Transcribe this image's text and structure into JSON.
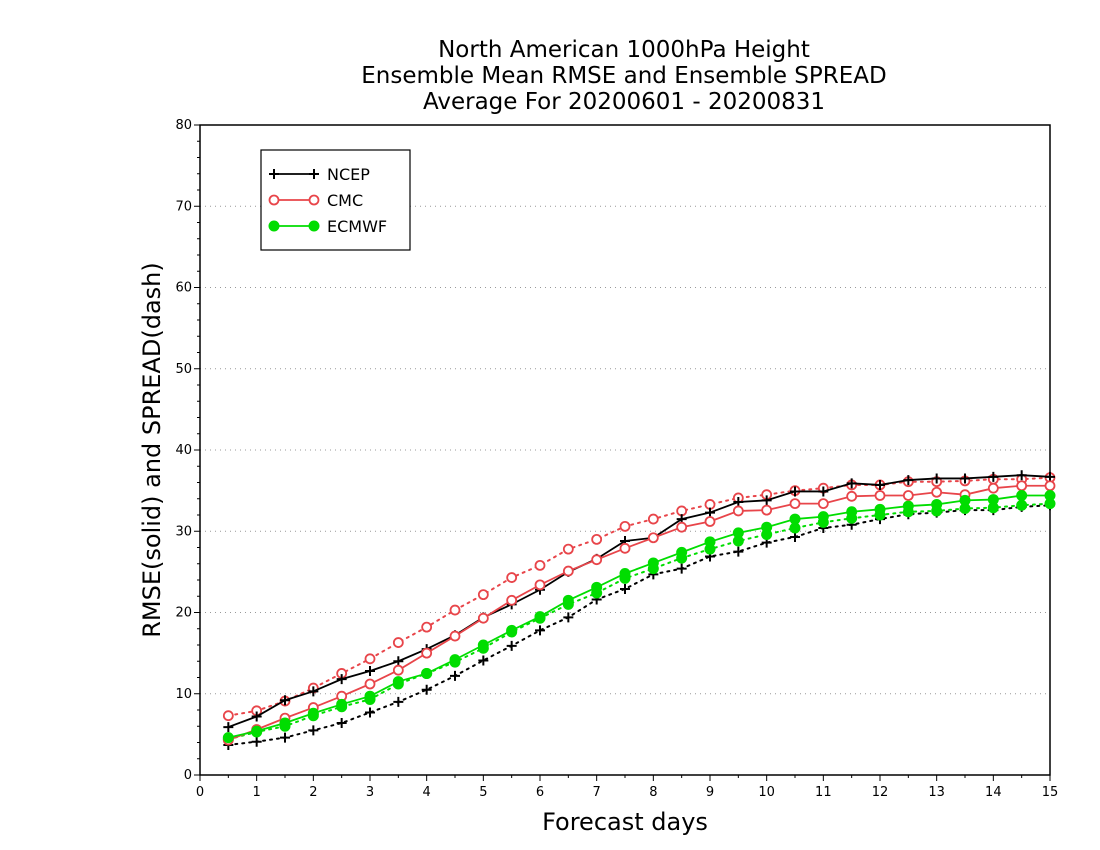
{
  "chart_data": {
    "type": "line",
    "title": [
      "North American 1000hPa Height",
      "Ensemble Mean RMSE and Ensemble SPREAD",
      "Average For 20200601 - 20200831"
    ],
    "xlabel": "Forecast days",
    "ylabel": "RMSE(solid) and SPREAD(dash)",
    "xlim": [
      0,
      15
    ],
    "ylim": [
      0,
      80
    ],
    "xticks": [
      0,
      1,
      2,
      3,
      4,
      5,
      6,
      7,
      8,
      9,
      10,
      11,
      12,
      13,
      14,
      15
    ],
    "yticks": [
      0,
      10,
      20,
      30,
      40,
      50,
      60,
      70,
      80
    ],
    "grid": "horizontal-dotted",
    "legend_position": "top-left",
    "x": [
      0.5,
      1,
      1.5,
      2,
      2.5,
      3,
      3.5,
      4,
      4.5,
      5,
      5.5,
      6,
      6.5,
      7,
      7.5,
      8,
      8.5,
      9,
      9.5,
      10,
      10.5,
      11,
      11.5,
      12,
      12.5,
      13,
      13.5,
      14,
      14.5,
      15
    ],
    "series": [
      {
        "name": "NCEP",
        "metric": "RMSE",
        "style": "solid",
        "color": "#000000",
        "marker": "plus",
        "values": [
          5.9,
          7.2,
          9.2,
          10.3,
          11.8,
          12.8,
          14.0,
          15.5,
          17.2,
          19.4,
          21.0,
          22.8,
          25.0,
          26.6,
          28.8,
          29.2,
          31.5,
          32.3,
          33.6,
          33.8,
          34.9,
          34.9,
          35.9,
          35.7,
          36.3,
          36.5,
          36.5,
          36.7,
          36.9,
          36.7
        ]
      },
      {
        "name": "CMC",
        "metric": "RMSE",
        "style": "solid",
        "color": "#e8454a",
        "marker": "circle-open",
        "values": [
          4.3,
          5.6,
          7.0,
          8.3,
          9.7,
          11.2,
          12.9,
          15.0,
          17.1,
          19.3,
          21.5,
          23.4,
          25.1,
          26.5,
          27.9,
          29.2,
          30.5,
          31.2,
          32.5,
          32.6,
          33.4,
          33.4,
          34.3,
          34.4,
          34.4,
          34.8,
          34.5,
          35.3,
          35.6,
          35.6
        ]
      },
      {
        "name": "ECMWF",
        "metric": "RMSE",
        "style": "solid",
        "color": "#00dd00",
        "marker": "circle-filled",
        "values": [
          4.6,
          5.4,
          6.4,
          7.6,
          8.7,
          9.7,
          11.5,
          12.5,
          14.2,
          16.0,
          17.8,
          19.5,
          21.5,
          23.1,
          24.8,
          26.1,
          27.4,
          28.7,
          29.8,
          30.5,
          31.5,
          31.8,
          32.4,
          32.7,
          33.1,
          33.3,
          33.8,
          33.9,
          34.4,
          34.4
        ]
      },
      {
        "name": "NCEP",
        "metric": "SPREAD",
        "style": "dotted",
        "color": "#000000",
        "marker": "plus",
        "values": [
          3.7,
          4.1,
          4.6,
          5.5,
          6.4,
          7.7,
          9.0,
          10.5,
          12.2,
          14.1,
          15.9,
          17.8,
          19.4,
          21.6,
          22.9,
          24.7,
          25.4,
          26.9,
          27.5,
          28.6,
          29.3,
          30.4,
          30.8,
          31.5,
          32.1,
          32.3,
          32.6,
          32.6,
          33.0,
          33.2
        ]
      },
      {
        "name": "CMC",
        "metric": "SPREAD",
        "style": "dotted",
        "color": "#e8454a",
        "marker": "circle-open",
        "values": [
          7.3,
          7.9,
          9.1,
          10.7,
          12.5,
          14.3,
          16.3,
          18.2,
          20.3,
          22.2,
          24.3,
          25.8,
          27.8,
          29.0,
          30.6,
          31.5,
          32.5,
          33.3,
          34.1,
          34.5,
          35.0,
          35.3,
          35.7,
          35.7,
          36.1,
          36.1,
          36.2,
          36.4,
          36.4,
          36.6
        ]
      },
      {
        "name": "ECMWF",
        "metric": "SPREAD",
        "style": "dotted",
        "color": "#00dd00",
        "marker": "circle-filled",
        "values": [
          4.4,
          5.3,
          6.0,
          7.3,
          8.4,
          9.3,
          11.2,
          12.5,
          13.9,
          15.6,
          17.6,
          19.3,
          21.0,
          22.4,
          24.2,
          25.4,
          26.7,
          27.8,
          28.8,
          29.6,
          30.4,
          31.1,
          31.6,
          32.0,
          32.4,
          32.5,
          32.8,
          32.9,
          33.2,
          33.4
        ]
      }
    ],
    "legend": [
      {
        "name": "NCEP",
        "color": "#000000",
        "marker": "plus"
      },
      {
        "name": "CMC",
        "color": "#e8454a",
        "marker": "circle-open"
      },
      {
        "name": "ECMWF",
        "color": "#00dd00",
        "marker": "circle-filled"
      }
    ]
  }
}
